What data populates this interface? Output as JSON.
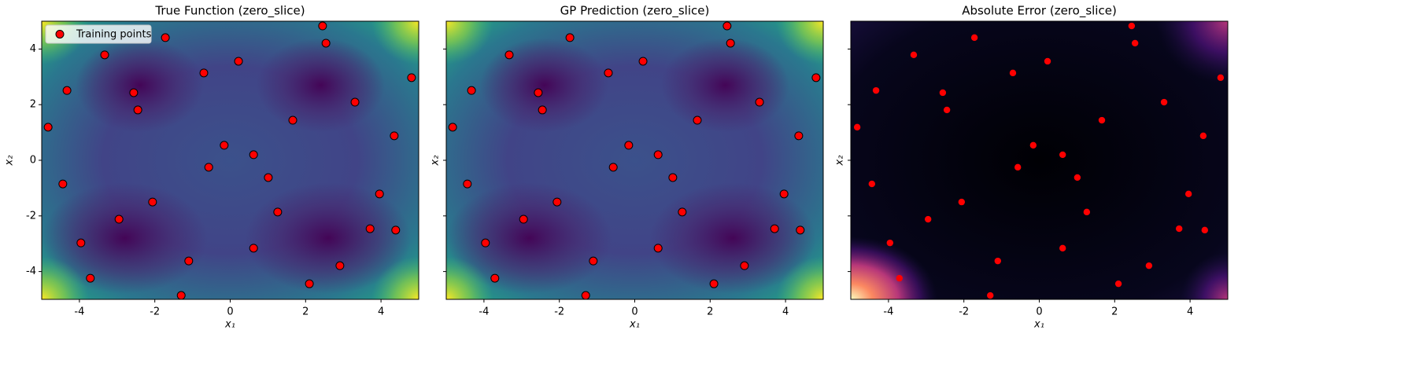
{
  "chart_data": [
    {
      "type": "scatter",
      "title": "True Function (zero_slice)",
      "xlabel": "x₁",
      "ylabel": "x₂",
      "colormap": "viridis",
      "xlim": [
        -5,
        5
      ],
      "ylim": [
        -5,
        5
      ],
      "xticks": [
        -4,
        -2,
        0,
        2,
        4
      ],
      "yticks": [
        -4,
        -2,
        0,
        2,
        4
      ],
      "sharey": false,
      "legend": "upper left",
      "series": [
        {
          "name": "Training points",
          "color": "#ff0000",
          "edgecolor": "#000000",
          "x": [
            2.45,
            -1.72,
            2.54,
            -3.33,
            0.22,
            4.81,
            -0.7,
            -4.33,
            -2.56,
            3.31,
            -2.45,
            1.66,
            -4.83,
            -0.16,
            4.35,
            0.62,
            -0.57,
            1.01,
            -4.44,
            3.96,
            -2.06,
            1.26,
            -2.95,
            3.71,
            4.39,
            -3.96,
            0.62,
            2.91,
            -1.1,
            -3.71,
            2.1,
            -1.3
          ],
          "y": [
            4.83,
            4.41,
            4.21,
            3.79,
            3.56,
            2.97,
            3.14,
            2.51,
            2.43,
            2.09,
            1.81,
            1.44,
            1.19,
            0.54,
            0.88,
            0.2,
            -0.25,
            -0.62,
            -0.85,
            -1.21,
            -1.5,
            -1.86,
            -2.12,
            -2.46,
            -2.51,
            -2.97,
            -3.16,
            -3.79,
            -3.62,
            -4.24,
            -4.44,
            -4.86
          ]
        }
      ]
    },
    {
      "type": "scatter",
      "title": "GP Prediction (zero_slice)",
      "xlabel": "x₁",
      "ylabel": "x₂",
      "colormap": "viridis",
      "xlim": [
        -5,
        5
      ],
      "ylim": [
        -5,
        5
      ],
      "xticks": [
        -4,
        -2,
        0,
        2,
        4
      ],
      "yticks": [
        -4,
        -2,
        0,
        2,
        4
      ],
      "sharey": true,
      "series": [
        {
          "color": "#ff0000",
          "edgecolor": "#000000",
          "x": [
            2.45,
            -1.72,
            2.54,
            -3.33,
            0.22,
            4.81,
            -0.7,
            -4.33,
            -2.56,
            3.31,
            -2.45,
            1.66,
            -4.83,
            -0.16,
            4.35,
            0.62,
            -0.57,
            1.01,
            -4.44,
            3.96,
            -2.06,
            1.26,
            -2.95,
            3.71,
            4.39,
            -3.96,
            0.62,
            2.91,
            -1.1,
            -3.71,
            2.1,
            -1.3
          ],
          "y": [
            4.83,
            4.41,
            4.21,
            3.79,
            3.56,
            2.97,
            3.14,
            2.51,
            2.43,
            2.09,
            1.81,
            1.44,
            1.19,
            0.54,
            0.88,
            0.2,
            -0.25,
            -0.62,
            -0.85,
            -1.21,
            -1.5,
            -1.86,
            -2.12,
            -2.46,
            -2.51,
            -2.97,
            -3.16,
            -3.79,
            -3.62,
            -4.24,
            -4.44,
            -4.86
          ]
        }
      ]
    },
    {
      "type": "scatter",
      "title": "Absolute Error (zero_slice)",
      "xlabel": "x₁",
      "ylabel": "x₂",
      "colormap": "magma",
      "xlim": [
        -5,
        5
      ],
      "ylim": [
        -5,
        5
      ],
      "xticks": [
        -4,
        -2,
        0,
        2,
        4
      ],
      "yticks": [
        -4,
        -2,
        0,
        2,
        4
      ],
      "sharey": true,
      "series": [
        {
          "color": "#ff0000",
          "x": [
            2.45,
            -1.72,
            2.54,
            -3.33,
            0.22,
            4.81,
            -0.7,
            -4.33,
            -2.56,
            3.31,
            -2.45,
            1.66,
            -4.83,
            -0.16,
            4.35,
            0.62,
            -0.57,
            1.01,
            -4.44,
            3.96,
            -2.06,
            1.26,
            -2.95,
            3.71,
            4.39,
            -3.96,
            0.62,
            2.91,
            -1.1,
            -3.71,
            2.1,
            -1.3
          ],
          "y": [
            4.83,
            4.41,
            4.21,
            3.79,
            3.56,
            2.97,
            3.14,
            2.51,
            2.43,
            2.09,
            1.81,
            1.44,
            1.19,
            0.54,
            0.88,
            0.2,
            -0.25,
            -0.62,
            -0.85,
            -1.21,
            -1.5,
            -1.86,
            -2.12,
            -2.46,
            -2.51,
            -2.97,
            -3.16,
            -3.79,
            -3.62,
            -4.24,
            -4.44,
            -4.86
          ]
        }
      ]
    }
  ]
}
